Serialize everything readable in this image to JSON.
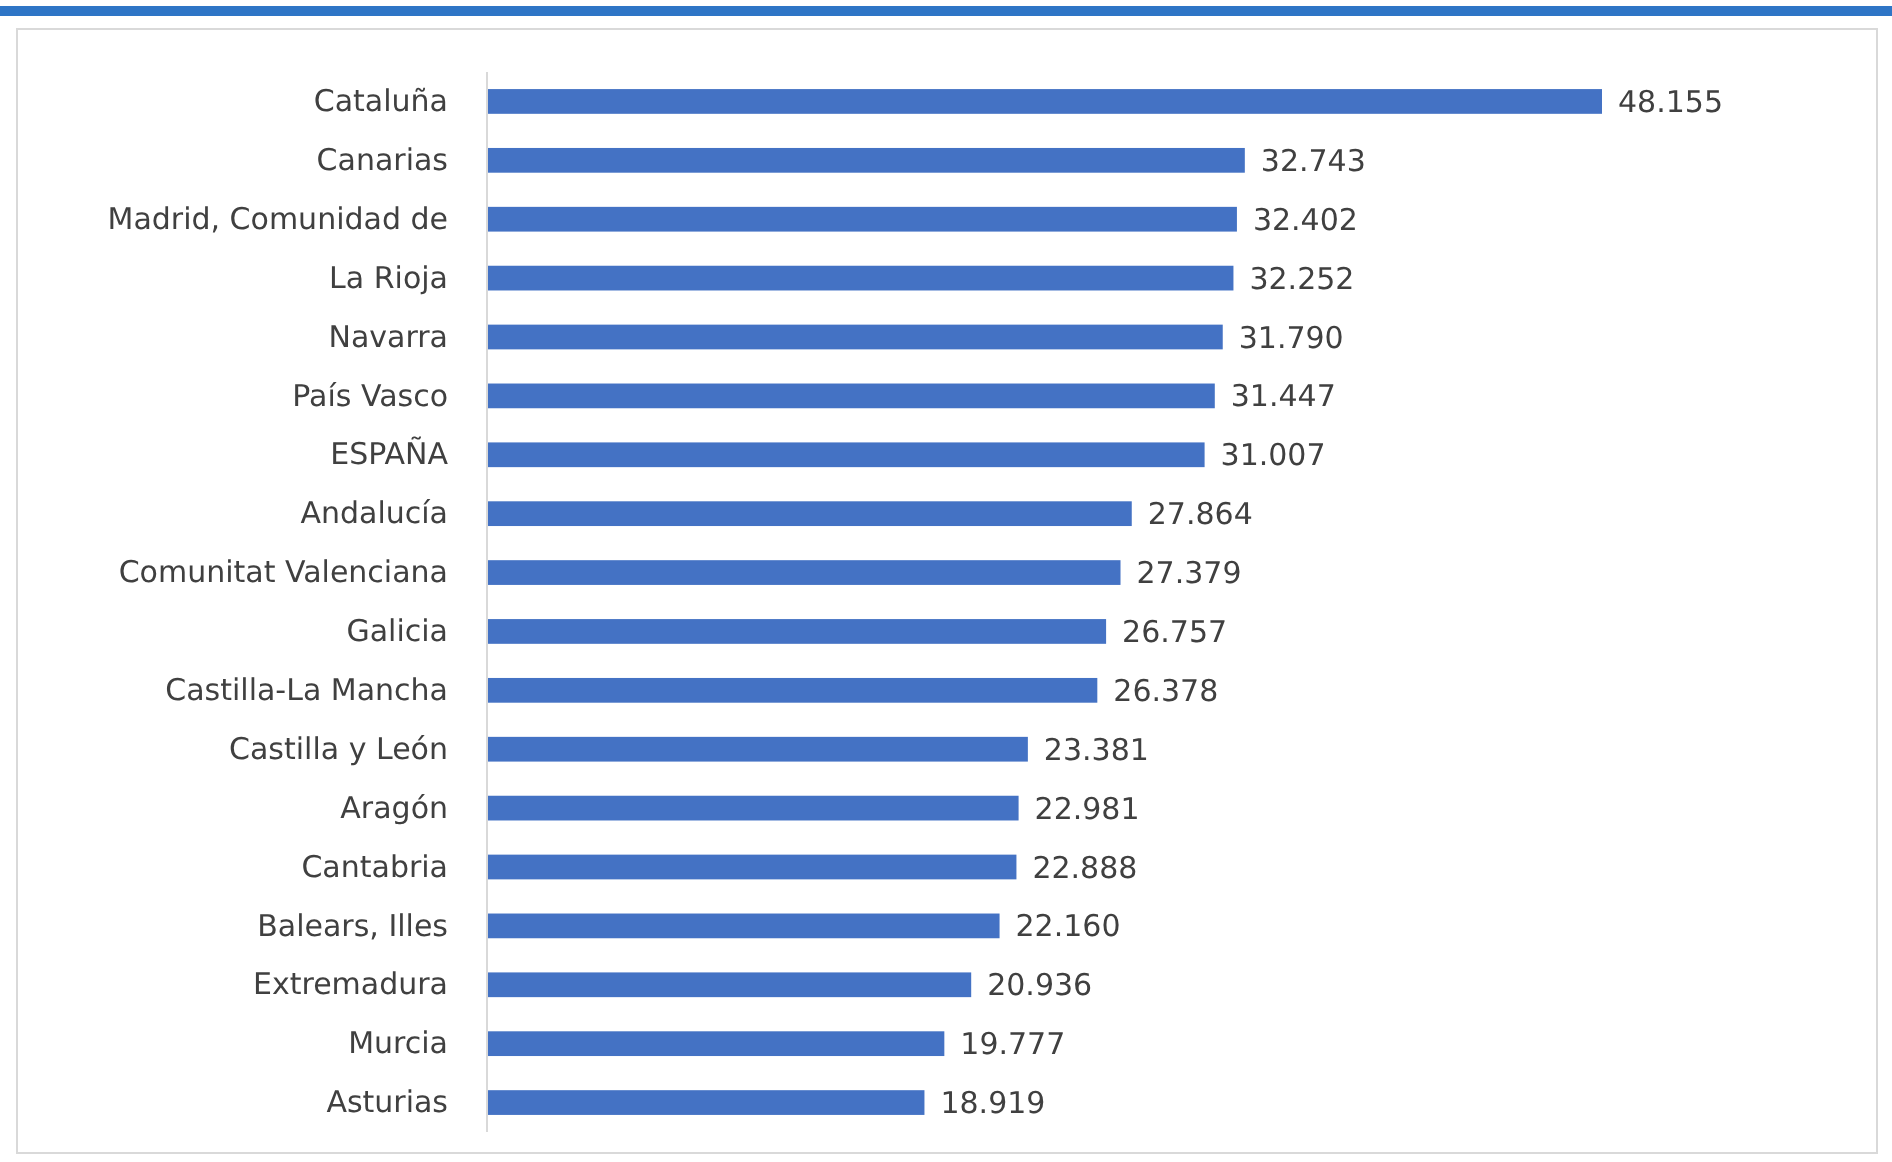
{
  "chart_data": {
    "type": "bar",
    "orientation": "horizontal",
    "categories": [
      "Cataluña",
      "Canarias",
      "Madrid, Comunidad de",
      "La Rioja",
      "Navarra",
      "País Vasco",
      "ESPAÑA",
      "Andalucía",
      "Comunitat Valenciana",
      "Galicia",
      "Castilla-La Mancha",
      "Castilla y León",
      "Aragón",
      "Cantabria",
      "Balears, Illes",
      "Extremadura",
      "Murcia",
      "Asturias"
    ],
    "values": [
      48155,
      32743,
      32402,
      32252,
      31790,
      31447,
      31007,
      27864,
      27379,
      26757,
      26378,
      23381,
      22981,
      22888,
      22160,
      20936,
      19777,
      18919
    ],
    "value_labels": [
      "48.155",
      "32.743",
      "32.402",
      "32.252",
      "31.790",
      "31.447",
      "31.007",
      "27.864",
      "27.379",
      "26.757",
      "26.378",
      "23.381",
      "22.981",
      "22.888",
      "22.160",
      "20.936",
      "19.777",
      "18.919"
    ],
    "color": "#4472c4"
  }
}
